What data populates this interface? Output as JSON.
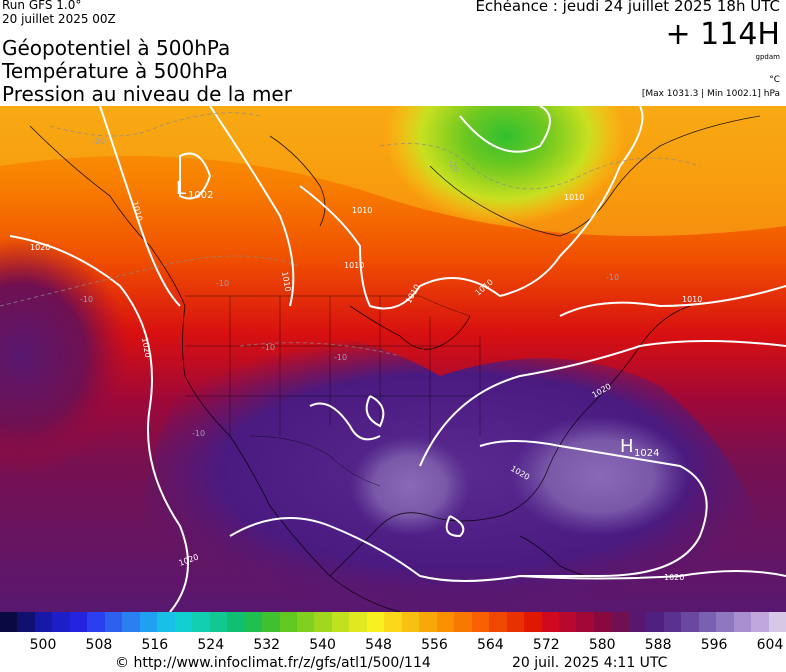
{
  "header": {
    "run_label": "Run GFS 1.0°",
    "run_date": "20 juillet 2025 00Z",
    "title_line_1": "Géopotentiel à 500hPa",
    "title_line_2": "Température à 500hPa",
    "title_line_3": "Pression au niveau de la mer",
    "valid_time": "Echéance : jeudi 24 juillet 2025 18h UTC",
    "lead_time": "+ 114H",
    "unit_gpdam": "gpdam",
    "unit_celsius": "°C",
    "pressure_extremes": "[Max 1031.3 | Min 1002.1] hPa"
  },
  "map": {
    "pressure_centers": [
      {
        "letter": "L",
        "value": "1002"
      },
      {
        "letter": "H",
        "value": "1024"
      }
    ],
    "isobar_labels": [
      "1010",
      "1010",
      "1010",
      "1010",
      "1010",
      "1010",
      "1010",
      "1010",
      "1020",
      "1020",
      "1020",
      "1020",
      "1020",
      "1020"
    ],
    "temperature_labels": [
      "-20",
      "-20",
      "-10",
      "-10",
      "-10",
      "-10",
      "-10",
      "-10"
    ]
  },
  "colorbar": {
    "tick_labels": [
      "500",
      "508",
      "516",
      "524",
      "532",
      "540",
      "548",
      "556",
      "564",
      "572",
      "580",
      "588",
      "596",
      "604"
    ],
    "colors": [
      "#0a0a40",
      "#101070",
      "#1818a8",
      "#1e1ec8",
      "#2424e0",
      "#2a40f0",
      "#2e60f0",
      "#2a80f0",
      "#20a0f0",
      "#18c0e8",
      "#10d0d0",
      "#10d0b0",
      "#10c890",
      "#10c070",
      "#20c050",
      "#40c030",
      "#60c820",
      "#80d020",
      "#a0d820",
      "#c0e020",
      "#e0e820",
      "#f8f020",
      "#f8d818",
      "#f8c010",
      "#f8a808",
      "#f89000",
      "#f87800",
      "#f86000",
      "#f04800",
      "#e83000",
      "#e01800",
      "#d00820",
      "#b80830",
      "#a00838",
      "#880840",
      "#701050",
      "#581870",
      "#502080",
      "#5a3090",
      "#6a48a0",
      "#7a60b0",
      "#9078c0",
      "#a890d0",
      "#c0a8dc",
      "#d8c8e8"
    ]
  },
  "footer": {
    "source": "© http://www.infoclimat.fr/z/gfs/atl1/500/114",
    "generated": "20 juil. 2025  4:11 UTC"
  }
}
